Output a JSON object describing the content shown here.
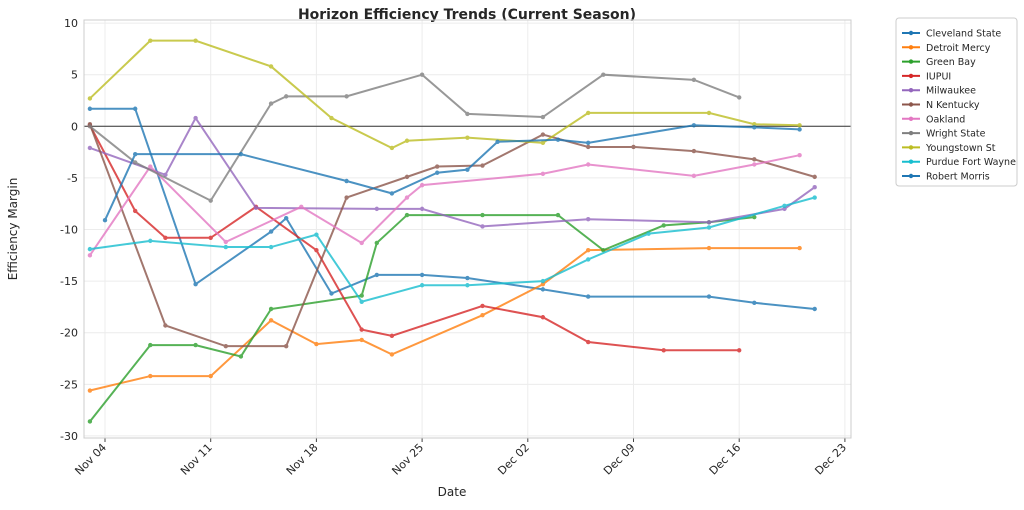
{
  "chart_data": {
    "type": "line",
    "title": "Horizon Efficiency Trends (Current Season)",
    "xlabel": "Date",
    "ylabel": "Efficiency Margin",
    "ylim": [
      -30.2,
      10.3
    ],
    "yticks": [
      10,
      5,
      0,
      -5,
      -10,
      -15,
      -20,
      -25,
      -30
    ],
    "xticks": [
      "Nov 04",
      "Nov 11",
      "Nov 18",
      "Nov 25",
      "Dec 02",
      "Dec 09",
      "Dec 16",
      "Dec 23"
    ],
    "grid": true,
    "zero_line": true,
    "legend_position": "outside-top-right",
    "series": [
      {
        "name": "Cleveland State",
        "color": "#1f77b4",
        "points": [
          [
            "Nov 03",
            1.7
          ],
          [
            "Nov 06",
            1.7
          ],
          [
            "Nov 10",
            -15.3
          ],
          [
            "Nov 15",
            -10.2
          ],
          [
            "Nov 16",
            -8.9
          ],
          [
            "Nov 19",
            -16.2
          ],
          [
            "Nov 22",
            -14.4
          ],
          [
            "Nov 25",
            -14.4
          ],
          [
            "Nov 28",
            -14.7
          ],
          [
            "Dec 03",
            -15.8
          ],
          [
            "Dec 06",
            -16.5
          ],
          [
            "Dec 14",
            -16.5
          ],
          [
            "Dec 17",
            -17.1
          ],
          [
            "Dec 21",
            -17.7
          ]
        ]
      },
      {
        "name": "Detroit Mercy",
        "color": "#ff7f0e",
        "points": [
          [
            "Nov 03",
            -25.6
          ],
          [
            "Nov 07",
            -24.2
          ],
          [
            "Nov 11",
            -24.2
          ],
          [
            "Nov 15",
            -18.8
          ],
          [
            "Nov 18",
            -21.1
          ],
          [
            "Nov 21",
            -20.7
          ],
          [
            "Nov 23",
            -22.1
          ],
          [
            "Nov 29",
            -18.3
          ],
          [
            "Dec 03",
            -15.3
          ],
          [
            "Dec 06",
            -12.0
          ],
          [
            "Dec 14",
            -11.8
          ],
          [
            "Dec 20",
            -11.8
          ]
        ]
      },
      {
        "name": "Green Bay",
        "color": "#2ca02c",
        "points": [
          [
            "Nov 03",
            -28.6
          ],
          [
            "Nov 07",
            -21.2
          ],
          [
            "Nov 10",
            -21.2
          ],
          [
            "Nov 13",
            -22.3
          ],
          [
            "Nov 15",
            -17.7
          ],
          [
            "Nov 21",
            -16.4
          ],
          [
            "Nov 22",
            -11.3
          ],
          [
            "Nov 24",
            -8.6
          ],
          [
            "Nov 29",
            -8.6
          ],
          [
            "Dec 04",
            -8.6
          ],
          [
            "Dec 07",
            -12.0
          ],
          [
            "Dec 11",
            -9.6
          ],
          [
            "Dec 14",
            -9.3
          ],
          [
            "Dec 17",
            -8.8
          ]
        ]
      },
      {
        "name": "IUPUI",
        "color": "#d62728",
        "points": [
          [
            "Nov 03",
            0.1
          ],
          [
            "Nov 06",
            -8.2
          ],
          [
            "Nov 08",
            -10.8
          ],
          [
            "Nov 11",
            -10.8
          ],
          [
            "Nov 14",
            -7.8
          ],
          [
            "Nov 18",
            -12.0
          ],
          [
            "Nov 21",
            -19.7
          ],
          [
            "Nov 23",
            -20.3
          ],
          [
            "Nov 29",
            -17.4
          ],
          [
            "Dec 03",
            -18.5
          ],
          [
            "Dec 06",
            -20.9
          ],
          [
            "Dec 11",
            -21.7
          ],
          [
            "Dec 16",
            -21.7
          ]
        ]
      },
      {
        "name": "Milwaukee",
        "color": "#9467bd",
        "points": [
          [
            "Nov 03",
            -2.1
          ],
          [
            "Nov 08",
            -4.7
          ],
          [
            "Nov 10",
            0.8
          ],
          [
            "Nov 14",
            -7.9
          ],
          [
            "Nov 22",
            -8.0
          ],
          [
            "Nov 25",
            -8.0
          ],
          [
            "Nov 29",
            -9.7
          ],
          [
            "Dec 06",
            -9.0
          ],
          [
            "Dec 14",
            -9.3
          ],
          [
            "Dec 19",
            -8.0
          ],
          [
            "Dec 21",
            -5.9
          ]
        ]
      },
      {
        "name": "N Kentucky",
        "color": "#8c564b",
        "points": [
          [
            "Nov 03",
            0.2
          ],
          [
            "Nov 08",
            -19.3
          ],
          [
            "Nov 12",
            -21.3
          ],
          [
            "Nov 16",
            -21.3
          ],
          [
            "Nov 20",
            -6.9
          ],
          [
            "Nov 24",
            -4.9
          ],
          [
            "Nov 26",
            -3.9
          ],
          [
            "Nov 29",
            -3.8
          ],
          [
            "Dec 03",
            -0.8
          ],
          [
            "Dec 06",
            -2.0
          ],
          [
            "Dec 09",
            -2.0
          ],
          [
            "Dec 13",
            -2.4
          ],
          [
            "Dec 17",
            -3.2
          ],
          [
            "Dec 21",
            -4.9
          ]
        ]
      },
      {
        "name": "Oakland",
        "color": "#e377c2",
        "points": [
          [
            "Nov 03",
            -12.5
          ],
          [
            "Nov 07",
            -3.9
          ],
          [
            "Nov 12",
            -11.2
          ],
          [
            "Nov 17",
            -7.8
          ],
          [
            "Nov 21",
            -11.3
          ],
          [
            "Nov 24",
            -6.9
          ],
          [
            "Nov 25",
            -5.7
          ],
          [
            "Dec 03",
            -4.6
          ],
          [
            "Dec 06",
            -3.7
          ],
          [
            "Dec 13",
            -4.8
          ],
          [
            "Dec 17",
            -3.7
          ],
          [
            "Dec 20",
            -2.8
          ]
        ]
      },
      {
        "name": "Wright State",
        "color": "#7f7f7f",
        "points": [
          [
            "Nov 03",
            0.0
          ],
          [
            "Nov 06",
            -3.5
          ],
          [
            "Nov 11",
            -7.2
          ],
          [
            "Nov 15",
            2.2
          ],
          [
            "Nov 16",
            2.9
          ],
          [
            "Nov 20",
            2.9
          ],
          [
            "Nov 25",
            5.0
          ],
          [
            "Nov 28",
            1.2
          ],
          [
            "Dec 03",
            0.9
          ],
          [
            "Dec 07",
            5.0
          ],
          [
            "Dec 13",
            4.5
          ],
          [
            "Dec 16",
            2.8
          ]
        ]
      },
      {
        "name": "Youngstown St",
        "color": "#bcbd22",
        "points": [
          [
            "Nov 03",
            2.7
          ],
          [
            "Nov 07",
            8.3
          ],
          [
            "Nov 10",
            8.3
          ],
          [
            "Nov 15",
            5.8
          ],
          [
            "Nov 19",
            0.8
          ],
          [
            "Nov 23",
            -2.1
          ],
          [
            "Nov 24",
            -1.4
          ],
          [
            "Nov 28",
            -1.1
          ],
          [
            "Dec 03",
            -1.6
          ],
          [
            "Dec 06",
            1.3
          ],
          [
            "Dec 14",
            1.3
          ],
          [
            "Dec 17",
            0.2
          ],
          [
            "Dec 20",
            0.1
          ]
        ]
      },
      {
        "name": "Purdue Fort Wayne",
        "color": "#17becf",
        "points": [
          [
            "Nov 03",
            -11.9
          ],
          [
            "Nov 07",
            -11.1
          ],
          [
            "Nov 12",
            -11.7
          ],
          [
            "Nov 15",
            -11.7
          ],
          [
            "Nov 18",
            -10.5
          ],
          [
            "Nov 21",
            -17.0
          ],
          [
            "Nov 25",
            -15.4
          ],
          [
            "Nov 28",
            -15.4
          ],
          [
            "Dec 03",
            -15.0
          ],
          [
            "Dec 06",
            -12.9
          ],
          [
            "Dec 10",
            -10.4
          ],
          [
            "Dec 14",
            -9.8
          ],
          [
            "Dec 19",
            -7.7
          ],
          [
            "Dec 21",
            -6.9
          ]
        ]
      },
      {
        "name": "Robert Morris",
        "color": "#1f77b4",
        "points": [
          [
            "Nov 04",
            -9.1
          ],
          [
            "Nov 06",
            -2.7
          ],
          [
            "Nov 13",
            -2.7
          ],
          [
            "Nov 20",
            -5.3
          ],
          [
            "Nov 23",
            -6.5
          ],
          [
            "Nov 26",
            -4.5
          ],
          [
            "Nov 28",
            -4.2
          ],
          [
            "Nov 30",
            -1.5
          ],
          [
            "Dec 04",
            -1.3
          ],
          [
            "Dec 06",
            -1.6
          ],
          [
            "Dec 13",
            0.1
          ],
          [
            "Dec 17",
            -0.1
          ],
          [
            "Dec 20",
            -0.3
          ]
        ]
      }
    ]
  }
}
